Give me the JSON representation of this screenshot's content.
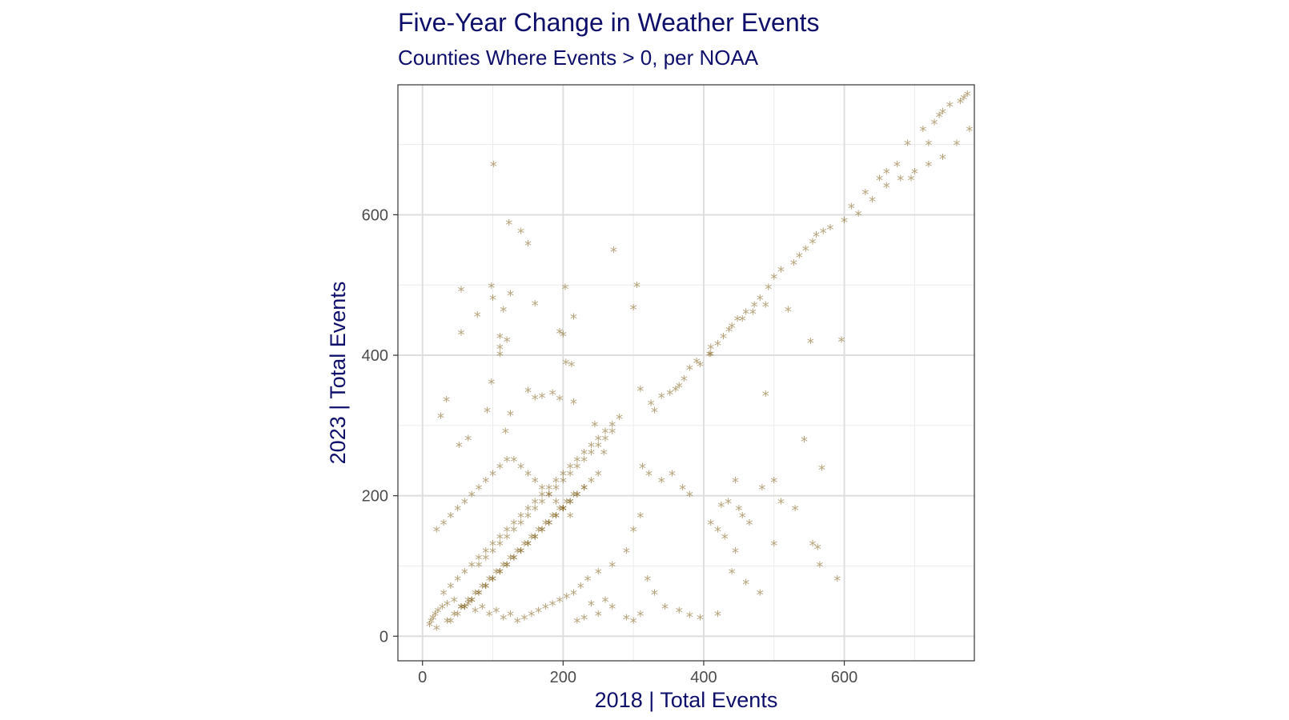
{
  "chart_data": {
    "type": "scatter",
    "title": "Five-Year Change in Weather Events",
    "subtitle": "Counties Where Events > 0, per NOAA",
    "xlabel": "2018 | Total Events",
    "ylabel": "2023 | Total Events",
    "xlim": [
      -35,
      785
    ],
    "ylim": [
      -35,
      785
    ],
    "x_ticks": [
      0,
      200,
      400,
      600
    ],
    "y_ticks": [
      0,
      200,
      400,
      600
    ],
    "grid": true,
    "marker": "asterisk",
    "point_color": "#7b5a10",
    "point_opacity": 0.55,
    "points_x": [
      101,
      123,
      140,
      150,
      272,
      98,
      55,
      78,
      55,
      100,
      110,
      115,
      125,
      160,
      203,
      215,
      305,
      300,
      195,
      200,
      204,
      212,
      185,
      92,
      98,
      118,
      125,
      150,
      160,
      170,
      195,
      215,
      245,
      258,
      26,
      34,
      52,
      65,
      110,
      120,
      110,
      488,
      552,
      520,
      543,
      568,
      500,
      562,
      596,
      408,
      410,
      440,
      455,
      470,
      488,
      600,
      620,
      640,
      660,
      680,
      700,
      720,
      740,
      760,
      778,
      695,
      720,
      340,
      360,
      372,
      380,
      390,
      310,
      330,
      325,
      352,
      365,
      395,
      410,
      420,
      428,
      436,
      448,
      460,
      472,
      480,
      492,
      500,
      510,
      528,
      536,
      545,
      555,
      560,
      570,
      580,
      610,
      630,
      650,
      660,
      675,
      690,
      712,
      728,
      735,
      740,
      750,
      765,
      770,
      775,
      313,
      322,
      340,
      370,
      355,
      380,
      410,
      425,
      435,
      445,
      450,
      455,
      465,
      483,
      510,
      530,
      555,
      565,
      590,
      480,
      500,
      440,
      460,
      420,
      430,
      445,
      395,
      420,
      380,
      365,
      345,
      330,
      320,
      310,
      300,
      290,
      270,
      260,
      250,
      240,
      230,
      220,
      300,
      310,
      290,
      270,
      250,
      235,
      225,
      215,
      205,
      195,
      185,
      175,
      165,
      155,
      145,
      135,
      125,
      115,
      105,
      95,
      85,
      75,
      65,
      55,
      45,
      35,
      28,
      22,
      18,
      15,
      12,
      10,
      30,
      40,
      50,
      60,
      70,
      80,
      90,
      100,
      110,
      120,
      130,
      140,
      150,
      160,
      170,
      180,
      190,
      200,
      210,
      220,
      230,
      240,
      250,
      260,
      270,
      280,
      60,
      70,
      80,
      90,
      100,
      110,
      120,
      130,
      140,
      150,
      160,
      170,
      180,
      190,
      200,
      210,
      220,
      230,
      240,
      250,
      20,
      30,
      40,
      50,
      60,
      70,
      80,
      90,
      100,
      110,
      120,
      130,
      140,
      150,
      160,
      170,
      180,
      190,
      200,
      210,
      40,
      50,
      60,
      70,
      80,
      90,
      100,
      110,
      120,
      130,
      140,
      150,
      160,
      170,
      180,
      190,
      200,
      210,
      220,
      230,
      80,
      90,
      100,
      110,
      120,
      130,
      140,
      150,
      160,
      170,
      180,
      190,
      200,
      210,
      220,
      230,
      240,
      250,
      260,
      270,
      20,
      35,
      45,
      55,
      65,
      75,
      85,
      95,
      105,
      115,
      125,
      135,
      145,
      155,
      165,
      175,
      185,
      195,
      205,
      215
    ],
    "points_y": [
      670,
      587,
      575,
      557,
      548,
      497,
      492,
      456,
      430,
      480,
      425,
      463,
      486,
      472,
      495,
      453,
      498,
      466,
      432,
      428,
      388,
      385,
      345,
      320,
      360,
      290,
      315,
      348,
      338,
      340,
      337,
      332,
      300,
      260,
      312,
      335,
      270,
      280,
      400,
      420,
      410,
      343,
      418,
      463,
      278,
      238,
      220,
      125,
      420,
      400,
      410,
      440,
      450,
      460,
      470,
      590,
      600,
      620,
      640,
      650,
      660,
      670,
      680,
      700,
      720,
      650,
      700,
      340,
      350,
      365,
      380,
      390,
      350,
      320,
      330,
      345,
      355,
      385,
      400,
      415,
      425,
      435,
      450,
      460,
      470,
      480,
      495,
      510,
      520,
      530,
      540,
      550,
      560,
      570,
      575,
      580,
      610,
      630,
      650,
      660,
      670,
      700,
      720,
      730,
      740,
      745,
      755,
      760,
      765,
      770,
      240,
      230,
      220,
      210,
      230,
      200,
      160,
      185,
      190,
      220,
      180,
      170,
      160,
      210,
      190,
      180,
      130,
      100,
      80,
      60,
      130,
      90,
      75,
      150,
      140,
      120,
      25,
      30,
      28,
      35,
      40,
      60,
      80,
      30,
      20,
      25,
      40,
      50,
      30,
      45,
      25,
      20,
      150,
      170,
      120,
      100,
      90,
      80,
      70,
      60,
      55,
      50,
      45,
      40,
      35,
      30,
      25,
      20,
      30,
      25,
      35,
      30,
      40,
      35,
      45,
      40,
      50,
      45,
      40,
      35,
      30,
      25,
      20,
      15,
      60,
      70,
      80,
      90,
      100,
      110,
      120,
      130,
      140,
      150,
      160,
      170,
      180,
      190,
      200,
      210,
      220,
      230,
      240,
      250,
      260,
      270,
      280,
      290,
      300,
      310,
      40,
      50,
      60,
      70,
      80,
      90,
      100,
      110,
      120,
      130,
      140,
      150,
      160,
      170,
      180,
      190,
      200,
      210,
      220,
      230,
      150,
      160,
      170,
      180,
      190,
      200,
      210,
      220,
      230,
      240,
      250,
      250,
      240,
      230,
      220,
      210,
      200,
      190,
      180,
      170,
      20,
      30,
      40,
      50,
      60,
      70,
      80,
      90,
      100,
      110,
      120,
      130,
      140,
      150,
      160,
      170,
      180,
      190,
      200,
      210,
      100,
      110,
      120,
      130,
      140,
      150,
      160,
      170,
      180,
      190,
      200,
      210,
      220,
      230,
      240,
      250,
      260,
      270,
      280,
      290,
      10,
      20,
      30,
      40,
      50,
      60,
      70,
      80,
      90,
      100,
      110,
      120,
      130,
      140,
      150,
      160,
      170,
      180,
      190,
      200
    ]
  }
}
